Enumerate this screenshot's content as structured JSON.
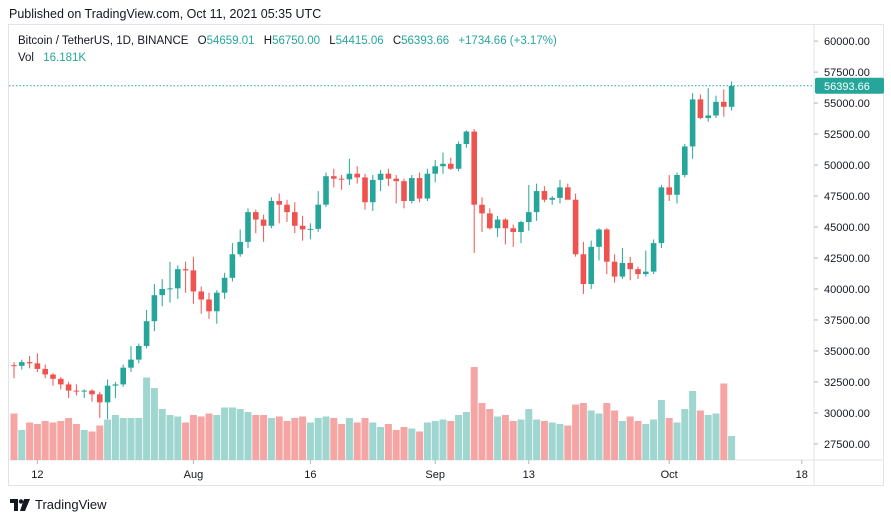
{
  "header": {
    "published": "Published on TradingView.com, Oct 11, 2021 05:35 UTC"
  },
  "legend": {
    "symbol": "Bitcoin / TetherUS, 1D, BINANCE",
    "o_label": "O",
    "o_value": "54659.01",
    "h_label": "H",
    "h_value": "56750.00",
    "l_label": "L",
    "l_value": "54415.06",
    "c_label": "C",
    "c_value": "56393.66",
    "change": "+1734.66 (+3.17%)",
    "vol_label": "Vol",
    "vol_value": "16.181K"
  },
  "footer": {
    "brand": "TradingView"
  },
  "colors": {
    "up": "#26a69a",
    "down": "#ef5350",
    "up_vol": "#9fd6d0",
    "down_vol": "#f5a5a3",
    "badge": "#26a69a"
  },
  "chart_data": {
    "type": "candlestick",
    "title": "Bitcoin / TetherUS, 1D, BINANCE",
    "interval": "1D",
    "y_axis": {
      "ticks": [
        27500,
        30000,
        32500,
        35000,
        37500,
        40000,
        42500,
        45000,
        47500,
        50000,
        52500,
        55000,
        57500,
        60000
      ],
      "tick_labels": [
        "27500.00",
        "30000.00",
        "32500.00",
        "35000.00",
        "37500.00",
        "40000.00",
        "42500.00",
        "45000.00",
        "47500.00",
        "50000.00",
        "52500.00",
        "55000.00",
        "57500.00",
        "60000.00"
      ],
      "range": [
        26200,
        61300
      ],
      "position": "right"
    },
    "x_axis": {
      "start_date": "2021-07-09",
      "ticks": [
        {
          "label": "12",
          "date": "2021-07-12"
        },
        {
          "label": "Aug",
          "date": "2021-08-01"
        },
        {
          "label": "16",
          "date": "2021-08-16"
        },
        {
          "label": "Sep",
          "date": "2021-09-01"
        },
        {
          "label": "13",
          "date": "2021-09-13"
        },
        {
          "label": "Oct",
          "date": "2021-10-01"
        },
        {
          "label": "18",
          "date": "2021-10-18"
        }
      ]
    },
    "last_price_label": "56393.66",
    "last_price": 56393.66,
    "candles": [
      [
        33850,
        34100,
        32800,
        33800,
        31
      ],
      [
        33800,
        34300,
        33500,
        34100,
        20
      ],
      [
        34100,
        34600,
        33600,
        34000,
        25
      ],
      [
        34000,
        34800,
        33300,
        33550,
        24
      ],
      [
        33550,
        33900,
        32800,
        33100,
        26
      ],
      [
        33100,
        33200,
        32200,
        32750,
        25
      ],
      [
        32750,
        32900,
        31900,
        32300,
        26
      ],
      [
        32300,
        32500,
        31200,
        31800,
        28
      ],
      [
        31800,
        32300,
        31400,
        31750,
        24
      ],
      [
        31750,
        31900,
        31200,
        31800,
        20
      ],
      [
        31800,
        31900,
        30900,
        31500,
        19
      ],
      [
        31500,
        31700,
        29600,
        30850,
        23
      ],
      [
        30850,
        32700,
        29500,
        32200,
        27
      ],
      [
        32200,
        32500,
        31200,
        32300,
        30
      ],
      [
        32300,
        33900,
        32100,
        33650,
        28
      ],
      [
        33650,
        35400,
        33300,
        34300,
        28
      ],
      [
        34300,
        35600,
        34000,
        35400,
        28
      ],
      [
        35400,
        38300,
        35200,
        37400,
        55
      ],
      [
        37400,
        40400,
        36600,
        39500,
        48
      ],
      [
        39500,
        40800,
        38600,
        40000,
        34
      ],
      [
        40000,
        42200,
        38900,
        40050,
        30
      ],
      [
        40050,
        41900,
        39200,
        41600,
        29
      ],
      [
        41600,
        42200,
        39700,
        41500,
        25
      ],
      [
        41500,
        42600,
        38800,
        39800,
        30
      ],
      [
        39800,
        40200,
        38000,
        39150,
        29
      ],
      [
        39150,
        39700,
        37600,
        38200,
        31
      ],
      [
        38200,
        39900,
        37200,
        39700,
        30
      ],
      [
        39700,
        41300,
        39200,
        40900,
        35
      ],
      [
        40900,
        43700,
        40600,
        42800,
        35
      ],
      [
        42800,
        44800,
        42600,
        43800,
        34
      ],
      [
        43800,
        46500,
        43300,
        46200,
        32
      ],
      [
        46200,
        46400,
        44500,
        45600,
        30
      ],
      [
        45600,
        46000,
        43800,
        45100,
        30
      ],
      [
        45100,
        47400,
        44900,
        47100,
        28
      ],
      [
        47100,
        47700,
        45300,
        46800,
        29
      ],
      [
        46800,
        47200,
        45400,
        46200,
        26
      ],
      [
        46200,
        47000,
        44500,
        45100,
        28
      ],
      [
        45100,
        45900,
        43900,
        44800,
        29
      ],
      [
        44800,
        45300,
        44000,
        44850,
        25
      ],
      [
        44850,
        47900,
        44600,
        46800,
        28
      ],
      [
        46800,
        49400,
        46600,
        49100,
        29
      ],
      [
        49100,
        49700,
        48200,
        48900,
        28
      ],
      [
        48900,
        49200,
        48000,
        48850,
        24
      ],
      [
        48850,
        50500,
        48400,
        49300,
        28
      ],
      [
        49300,
        49900,
        48500,
        49000,
        25
      ],
      [
        49000,
        49300,
        46400,
        47000,
        28
      ],
      [
        47000,
        49200,
        46300,
        48800,
        25
      ],
      [
        48800,
        49600,
        47900,
        49300,
        22
      ],
      [
        49300,
        49700,
        48300,
        48900,
        24
      ],
      [
        48900,
        49200,
        46900,
        48700,
        20
      ],
      [
        48700,
        48900,
        46500,
        47100,
        22
      ],
      [
        47100,
        49200,
        46900,
        48950,
        21
      ],
      [
        48950,
        49400,
        47000,
        47300,
        19
      ],
      [
        47300,
        49700,
        47100,
        49300,
        25
      ],
      [
        49300,
        50400,
        48600,
        49900,
        26
      ],
      [
        49900,
        51000,
        49300,
        50100,
        27
      ],
      [
        50100,
        50600,
        49600,
        49700,
        26
      ],
      [
        49700,
        51900,
        49500,
        51700,
        30
      ],
      [
        51700,
        52800,
        51400,
        52700,
        32
      ],
      [
        52700,
        52900,
        42900,
        46800,
        62
      ],
      [
        46800,
        47400,
        44600,
        46100,
        38
      ],
      [
        46100,
        46500,
        44800,
        44900,
        34
      ],
      [
        44900,
        45900,
        44200,
        45600,
        29
      ],
      [
        45600,
        45700,
        43600,
        44900,
        30
      ],
      [
        44900,
        45200,
        43400,
        44600,
        26
      ],
      [
        44600,
        45500,
        43700,
        45400,
        27
      ],
      [
        45400,
        48400,
        44700,
        46200,
        34
      ],
      [
        46200,
        48500,
        45500,
        47900,
        27
      ],
      [
        47900,
        48300,
        47000,
        47200,
        26
      ],
      [
        47200,
        47500,
        46800,
        47350,
        25
      ],
      [
        47350,
        48800,
        46900,
        48200,
        24
      ],
      [
        48200,
        48500,
        47500,
        47200,
        23
      ],
      [
        47200,
        47700,
        42600,
        42800,
        37
      ],
      [
        42800,
        43800,
        39600,
        40400,
        38
      ],
      [
        40400,
        43900,
        40000,
        43400,
        33
      ],
      [
        43400,
        44900,
        42300,
        44800,
        31
      ],
      [
        44800,
        44900,
        41200,
        42200,
        38
      ],
      [
        42200,
        42800,
        40500,
        41000,
        33
      ],
      [
        41000,
        43300,
        40800,
        42100,
        26
      ],
      [
        42100,
        42600,
        40700,
        41600,
        29
      ],
      [
        41600,
        41800,
        40800,
        41200,
        26
      ],
      [
        41200,
        43100,
        41000,
        41400,
        24
      ],
      [
        41400,
        44000,
        41200,
        43700,
        27
      ],
      [
        43700,
        48400,
        43300,
        48200,
        40
      ],
      [
        48200,
        49200,
        47100,
        47600,
        28
      ],
      [
        47600,
        49400,
        46900,
        49200,
        25
      ],
      [
        49200,
        51700,
        49000,
        51500,
        34
      ],
      [
        51500,
        55800,
        50500,
        55300,
        46
      ],
      [
        55300,
        55700,
        53700,
        53800,
        33
      ],
      [
        53800,
        56200,
        53500,
        54000,
        30
      ],
      [
        54000,
        55600,
        53800,
        55100,
        31
      ],
      [
        55100,
        56100,
        53900,
        54700,
        51
      ],
      [
        54700,
        56750,
        54400,
        56390,
        16
      ]
    ]
  }
}
